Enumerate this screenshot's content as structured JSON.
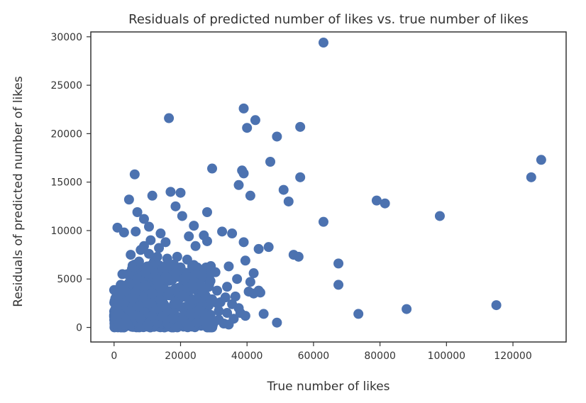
{
  "chart_data": {
    "type": "scatter",
    "title": "Residuals of predicted number of likes vs. true number of likes",
    "xlabel": "True number of likes",
    "ylabel": "Residuals of predicted number of likes",
    "xlim": [
      -7000,
      136000
    ],
    "ylim": [
      -1500,
      30500
    ],
    "xticks": [
      0,
      20000,
      40000,
      60000,
      80000,
      100000,
      120000
    ],
    "yticks": [
      0,
      5000,
      10000,
      15000,
      20000,
      25000,
      30000
    ],
    "xtick_labels": [
      "0",
      "20000",
      "40000",
      "60000",
      "80000",
      "100000",
      "120000"
    ],
    "ytick_labels": [
      "0",
      "5000",
      "10000",
      "15000",
      "20000",
      "25000",
      "30000"
    ],
    "grid": false,
    "marker_color": "#4c72b0",
    "points": [
      [
        63000,
        29400
      ],
      [
        39000,
        22600
      ],
      [
        42500,
        21400
      ],
      [
        16500,
        21600
      ],
      [
        40000,
        20600
      ],
      [
        56000,
        20700
      ],
      [
        49000,
        19700
      ],
      [
        47000,
        17100
      ],
      [
        29500,
        16400
      ],
      [
        38500,
        16200
      ],
      [
        6200,
        15800
      ],
      [
        56000,
        15500
      ],
      [
        39000,
        15900
      ],
      [
        37500,
        14700
      ],
      [
        51000,
        14200
      ],
      [
        4500,
        13200
      ],
      [
        11500,
        13600
      ],
      [
        17000,
        14000
      ],
      [
        20000,
        13900
      ],
      [
        41000,
        13600
      ],
      [
        52500,
        13000
      ],
      [
        18500,
        12500
      ],
      [
        7000,
        11900
      ],
      [
        28000,
        11900
      ],
      [
        20500,
        11500
      ],
      [
        9000,
        11200
      ],
      [
        63000,
        10900
      ],
      [
        1000,
        10300
      ],
      [
        10500,
        10400
      ],
      [
        24000,
        10500
      ],
      [
        3000,
        9800
      ],
      [
        6500,
        9900
      ],
      [
        14000,
        9700
      ],
      [
        32500,
        9900
      ],
      [
        35500,
        9700
      ],
      [
        22500,
        9400
      ],
      [
        27000,
        9500
      ],
      [
        11000,
        9000
      ],
      [
        15500,
        8800
      ],
      [
        28000,
        8900
      ],
      [
        39000,
        8800
      ],
      [
        9000,
        8400
      ],
      [
        13500,
        8200
      ],
      [
        24500,
        8400
      ],
      [
        43500,
        8100
      ],
      [
        46500,
        8300
      ],
      [
        5000,
        7500
      ],
      [
        10500,
        7600
      ],
      [
        54000,
        7500
      ],
      [
        55500,
        7300
      ],
      [
        39500,
        6900
      ],
      [
        67500,
        6600
      ],
      [
        2500,
        5500
      ],
      [
        20000,
        6200
      ],
      [
        34500,
        6300
      ],
      [
        42000,
        5600
      ],
      [
        37000,
        5000
      ],
      [
        41000,
        4700
      ],
      [
        67500,
        4400
      ],
      [
        2000,
        4400
      ],
      [
        34000,
        4200
      ],
      [
        43500,
        3800
      ],
      [
        40500,
        3700
      ],
      [
        44000,
        3600
      ],
      [
        36500,
        3200
      ],
      [
        31000,
        2500
      ],
      [
        42000,
        3500
      ],
      [
        73500,
        1400
      ],
      [
        88000,
        1900
      ],
      [
        115000,
        2300
      ],
      [
        45000,
        1400
      ],
      [
        39500,
        1200
      ],
      [
        49000,
        500
      ],
      [
        33000,
        400
      ],
      [
        34500,
        300
      ],
      [
        31500,
        800
      ],
      [
        27000,
        1500
      ],
      [
        98000,
        11500
      ],
      [
        79000,
        13100
      ],
      [
        81500,
        12800
      ],
      [
        125500,
        15500
      ],
      [
        128500,
        17300
      ],
      [
        8000,
        8000
      ],
      [
        12000,
        6800
      ],
      [
        16000,
        7100
      ],
      [
        18000,
        6500
      ],
      [
        22000,
        7000
      ],
      [
        25000,
        6200
      ],
      [
        26500,
        5400
      ],
      [
        29000,
        4800
      ],
      [
        30500,
        5700
      ],
      [
        23000,
        5100
      ],
      [
        19000,
        5800
      ],
      [
        14500,
        6000
      ],
      [
        6000,
        6200
      ],
      [
        3500,
        3700
      ],
      [
        7500,
        4100
      ],
      [
        12500,
        4500
      ],
      [
        17500,
        4900
      ],
      [
        21000,
        4300
      ],
      [
        24500,
        3900
      ],
      [
        27500,
        3300
      ],
      [
        29500,
        2900
      ],
      [
        32000,
        2600
      ],
      [
        26000,
        2100
      ],
      [
        22500,
        2300
      ],
      [
        19500,
        2900
      ],
      [
        15500,
        3300
      ],
      [
        11000,
        2800
      ],
      [
        8500,
        3100
      ],
      [
        5000,
        2500
      ],
      [
        2500,
        2100
      ],
      [
        1000,
        1700
      ],
      [
        500,
        900
      ],
      [
        1500,
        400
      ],
      [
        3500,
        800
      ],
      [
        6000,
        1200
      ],
      [
        9000,
        1600
      ],
      [
        12000,
        1900
      ],
      [
        15000,
        2400
      ],
      [
        18000,
        1500
      ],
      [
        21000,
        1200
      ],
      [
        24000,
        1000
      ],
      [
        27000,
        700
      ],
      [
        30000,
        500
      ],
      [
        4000,
        300
      ],
      [
        7000,
        500
      ],
      [
        10000,
        300
      ],
      [
        13000,
        600
      ],
      [
        16000,
        400
      ],
      [
        19000,
        600
      ],
      [
        22000,
        300
      ],
      [
        25000,
        500
      ],
      [
        28000,
        200
      ],
      [
        2000,
        1200
      ],
      [
        4500,
        1800
      ],
      [
        7500,
        2200
      ],
      [
        10500,
        2500
      ],
      [
        13500,
        3000
      ],
      [
        16500,
        3600
      ],
      [
        19500,
        4100
      ],
      [
        20500,
        3300
      ],
      [
        23500,
        2800
      ],
      [
        26500,
        3700
      ],
      [
        28500,
        4200
      ],
      [
        31000,
        3800
      ],
      [
        33500,
        3100
      ],
      [
        35500,
        2400
      ],
      [
        37500,
        2000
      ],
      [
        38000,
        1500
      ],
      [
        36000,
        900
      ],
      [
        12000,
        5200
      ],
      [
        9500,
        5600
      ],
      [
        7000,
        5000
      ],
      [
        4500,
        4600
      ],
      [
        2000,
        3000
      ],
      [
        17000,
        5400
      ],
      [
        14000,
        4000
      ],
      [
        11500,
        3500
      ],
      [
        6500,
        3600
      ],
      [
        3000,
        2600
      ],
      [
        500,
        2000
      ],
      [
        1500,
        1400
      ],
      [
        8000,
        900
      ],
      [
        11500,
        1200
      ],
      [
        14500,
        1100
      ],
      [
        17500,
        900
      ],
      [
        20500,
        800
      ],
      [
        23000,
        1400
      ],
      [
        25500,
        1800
      ],
      [
        29000,
        1300
      ],
      [
        31500,
        1700
      ],
      [
        34000,
        1500
      ],
      [
        5500,
        3000
      ],
      [
        9500,
        4300
      ],
      [
        13000,
        4800
      ],
      [
        15500,
        5200
      ],
      [
        18500,
        5600
      ],
      [
        21500,
        5200
      ],
      [
        24000,
        4700
      ],
      [
        26000,
        4300
      ],
      [
        16000,
        6500
      ],
      [
        19000,
        7300
      ],
      [
        13000,
        7300
      ],
      [
        10000,
        6300
      ],
      [
        7500,
        6800
      ],
      [
        4000,
        5500
      ],
      [
        1500,
        2600
      ],
      [
        3000,
        4300
      ]
    ]
  }
}
